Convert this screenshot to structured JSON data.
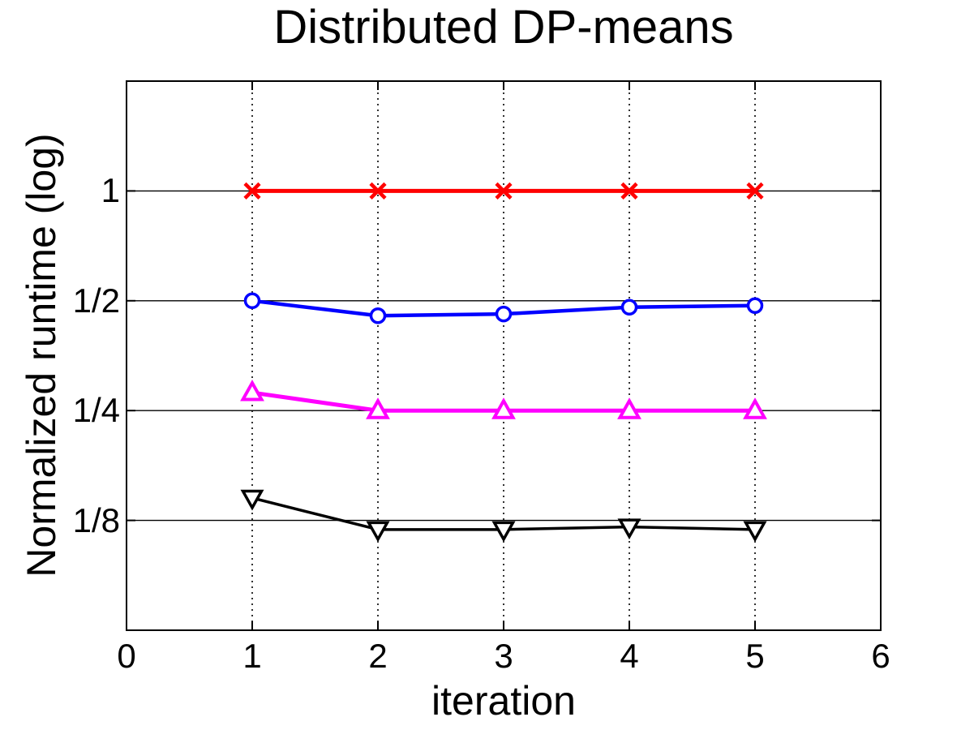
{
  "chart_data": {
    "type": "line",
    "title": "Distributed DP-means",
    "xlabel": "iteration",
    "ylabel": "Normalized runtime (log)",
    "x": [
      1,
      2,
      3,
      4,
      5
    ],
    "xlim": [
      0,
      6
    ],
    "ylim": [
      0.0625,
      2
    ],
    "yscale": "log2",
    "xticks": {
      "values": [
        0,
        1,
        2,
        3,
        4,
        5,
        6
      ],
      "labels": [
        "0",
        "1",
        "2",
        "3",
        "4",
        "5",
        "6"
      ]
    },
    "yticks": {
      "values": [
        1,
        0.5,
        0.25,
        0.125
      ],
      "labels": [
        "1",
        "1/2",
        "1/4",
        "1/8"
      ]
    },
    "grid": {
      "horizontal": "solid",
      "vertical": "dotted",
      "vertical_at": [
        1,
        2,
        3,
        4,
        5
      ]
    },
    "legend": "none",
    "series": [
      {
        "name": "red-x",
        "color": "#ff0000",
        "marker": "x",
        "line_width": 5,
        "values": [
          1,
          1,
          1,
          1,
          1
        ]
      },
      {
        "name": "blue-circle",
        "color": "#0000ff",
        "marker": "circle",
        "line_width": 4.5,
        "values": [
          0.5,
          0.455,
          0.46,
          0.48,
          0.485
        ]
      },
      {
        "name": "magenta-triangle-up",
        "color": "#ff00ff",
        "marker": "triangle-up",
        "line_width": 5,
        "values": [
          0.28,
          0.25,
          0.25,
          0.25,
          0.25
        ]
      },
      {
        "name": "black-triangle-down",
        "color": "#000000",
        "marker": "triangle-down",
        "line_width": 3.5,
        "values": [
          0.144,
          0.118,
          0.118,
          0.12,
          0.118
        ]
      }
    ],
    "axis_color": "#000000",
    "background": "#ffffff"
  }
}
